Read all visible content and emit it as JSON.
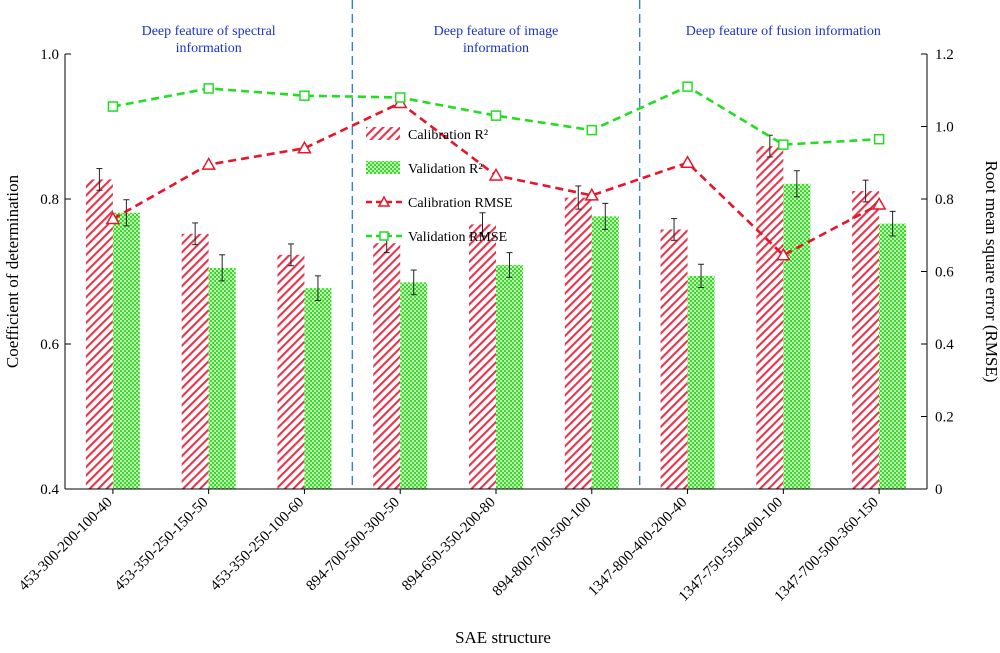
{
  "chart_data": {
    "type": "bar",
    "xlabel": "SAE structure",
    "ylabel": "Coefficient of determination",
    "y2label": "Root mean square error (RMSE)",
    "ylim": [
      0.4,
      1.0
    ],
    "y2lim": [
      0,
      1.2
    ],
    "yticks": [
      "0.4",
      "0.6",
      "0.8",
      "1.0"
    ],
    "y2ticks": [
      "0",
      "0.2",
      "0.4",
      "0.6",
      "0.8",
      "1.0",
      "1.2"
    ],
    "categories": [
      "453-300-200-100-40",
      "453-350-250-150-50",
      "453-350-250-100-60",
      "894-700-500-300-50",
      "894-650-350-200-80",
      "894-800-700-500-100",
      "1347-800-400-200-40",
      "1347-750-550-400-100",
      "1347-700-500-360-150"
    ],
    "groups": [
      {
        "title_line1": "Deep feature of spectral",
        "title_line2": "information",
        "start": 0,
        "end": 2
      },
      {
        "title_line1": "Deep feature of image",
        "title_line2": "information",
        "start": 3,
        "end": 5
      },
      {
        "title_line1": "Deep feature of fusion information",
        "title_line2": "",
        "start": 6,
        "end": 8
      }
    ],
    "series": [
      {
        "name": "Calibration R²",
        "kind": "bar",
        "axis": "left",
        "color": "#e8334a",
        "values": [
          0.827,
          0.752,
          0.723,
          0.739,
          0.765,
          0.802,
          0.758,
          0.873,
          0.811
        ],
        "errors": [
          0.015,
          0.015,
          0.015,
          0.013,
          0.016,
          0.016,
          0.015,
          0.015,
          0.015
        ]
      },
      {
        "name": "Validation R²",
        "kind": "bar",
        "axis": "left",
        "color": "#33dd22",
        "values": [
          0.781,
          0.705,
          0.677,
          0.685,
          0.709,
          0.776,
          0.694,
          0.821,
          0.766
        ],
        "errors": [
          0.018,
          0.018,
          0.017,
          0.017,
          0.017,
          0.018,
          0.016,
          0.018,
          0.017
        ]
      },
      {
        "name": "Calibration RMSE",
        "kind": "line",
        "axis": "right",
        "color": "#e8142a",
        "marker": "triangle",
        "values": [
          0.745,
          0.895,
          0.94,
          1.065,
          0.865,
          0.81,
          0.9,
          0.645,
          0.785
        ]
      },
      {
        "name": "Validation RMSE",
        "kind": "line",
        "axis": "right",
        "color": "#22dd22",
        "marker": "square",
        "values": [
          1.055,
          1.105,
          1.085,
          1.08,
          1.03,
          0.99,
          1.11,
          0.95,
          0.965
        ]
      }
    ],
    "legend_position": "center-top",
    "grid": false
  }
}
